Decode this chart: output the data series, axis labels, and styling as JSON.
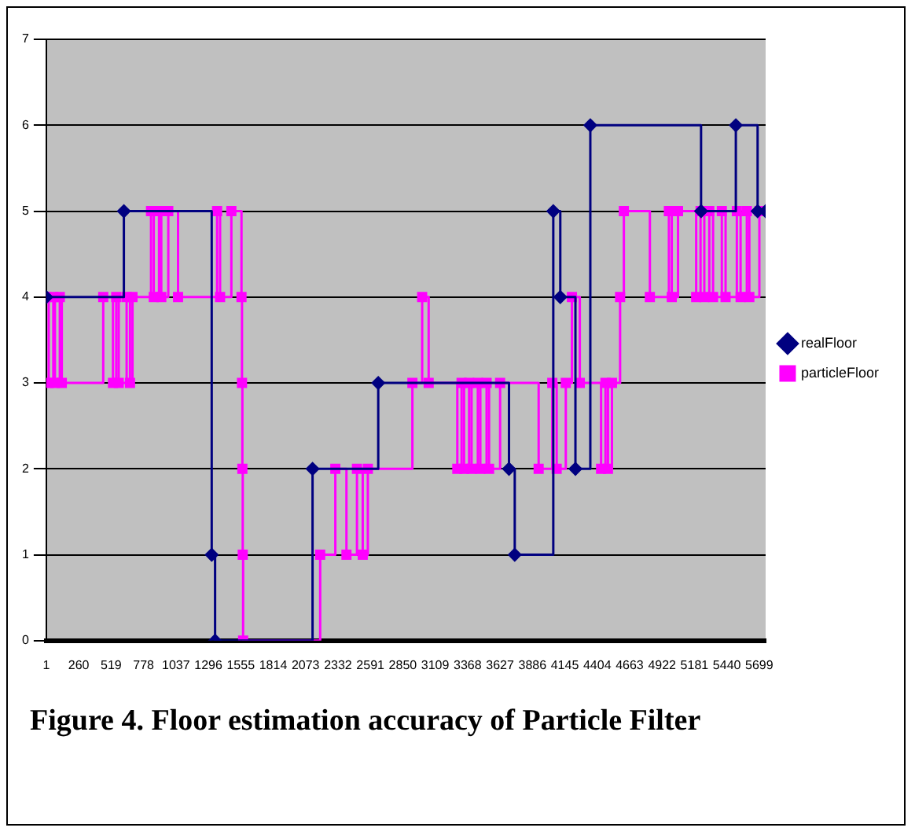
{
  "chart_data": {
    "type": "step",
    "title": "Figure 4. Floor estimation accuracy of Particle Filter",
    "xlim": [
      1,
      5750
    ],
    "xticks": [
      1,
      260,
      519,
      778,
      1037,
      1296,
      1555,
      1814,
      2073,
      2332,
      2591,
      2850,
      3109,
      3368,
      3627,
      3886,
      4145,
      4404,
      4663,
      4922,
      5181,
      5440,
      5699
    ],
    "ylim": [
      0,
      7
    ],
    "yticks": [
      0,
      1,
      2,
      3,
      4,
      5,
      6,
      7
    ],
    "grid": "y",
    "legend": "right",
    "series": [
      {
        "name": "realFloor",
        "color": "#000080",
        "marker": "diamond",
        "x": [
          1,
          621,
          1323,
          1350,
          2129,
          2654,
          3699,
          3745,
          4053,
          4109,
          4230,
          4349,
          5234,
          5512,
          5686,
          5750
        ],
        "values": [
          4,
          5,
          1,
          0,
          2,
          3,
          2,
          1,
          5,
          4,
          2,
          6,
          5,
          6,
          5,
          5
        ]
      },
      {
        "name": "particleFloor",
        "color": "#ff00ff",
        "marker": "square",
        "x": [
          1,
          20,
          57,
          70,
          109,
          125,
          456,
          534,
          560,
          580,
          643,
          670,
          690,
          838,
          860,
          902,
          920,
          976,
          1054,
          1366,
          1390,
          1480,
          1561,
          1565,
          1568,
          1571,
          1574,
          2190,
          2311,
          2400,
          2484,
          2530,
          2571,
          2927,
          3005,
          3057,
          3286,
          3320,
          3340,
          3380,
          3400,
          3450,
          3470,
          3520,
          3540,
          3628,
          3936,
          4045,
          4080,
          4153,
          4202,
          4265,
          4435,
          4470,
          4490,
          4522,
          4587,
          4617,
          4825,
          4977,
          5000,
          5050,
          5195,
          5230,
          5260,
          5300,
          5330,
          5400,
          5430,
          5520,
          5550,
          5600,
          5620,
          5700,
          5750
        ],
        "values": [
          4,
          3,
          4,
          3,
          4,
          3,
          4,
          3,
          4,
          3,
          4,
          3,
          4,
          5,
          4,
          5,
          4,
          5,
          4,
          5,
          4,
          5,
          4,
          3,
          2,
          1,
          0,
          1,
          2,
          1,
          2,
          1,
          2,
          3,
          4,
          3,
          2,
          3,
          2,
          3,
          2,
          3,
          2,
          3,
          2,
          3,
          2,
          3,
          2,
          3,
          4,
          3,
          2,
          3,
          2,
          3,
          4,
          5,
          4,
          5,
          4,
          5,
          4,
          5,
          4,
          5,
          4,
          5,
          4,
          5,
          4,
          5,
          4,
          5,
          5
        ]
      }
    ]
  }
}
